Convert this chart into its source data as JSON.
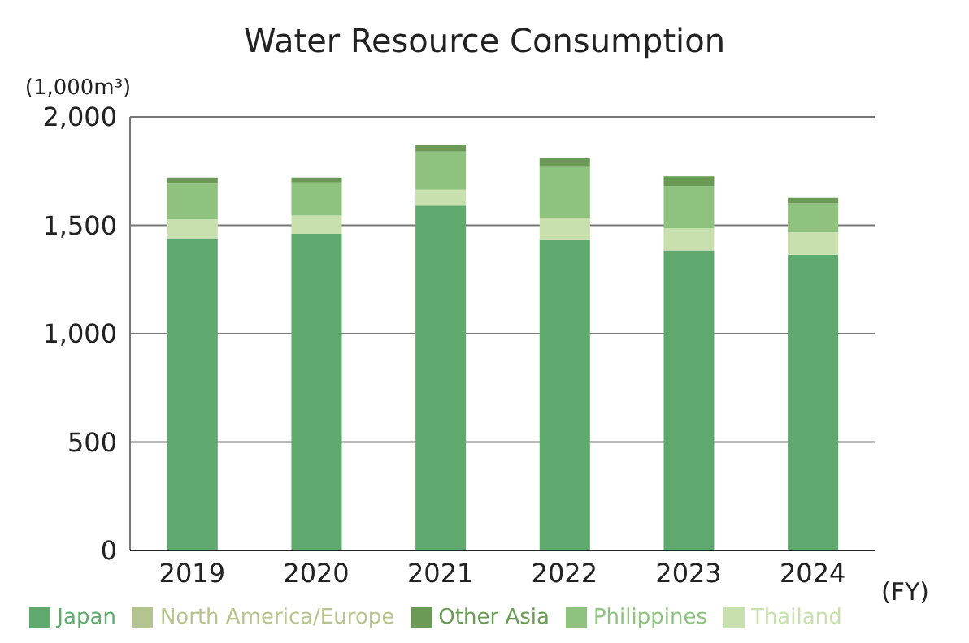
{
  "chart_data": {
    "type": "bar",
    "title": "Water Resource Consumption",
    "ylabel": "(1,000m³)",
    "xlabel": "(FY)",
    "categories": [
      "2019",
      "2020",
      "2021",
      "2022",
      "2023",
      "2024"
    ],
    "stacked": true,
    "series": [
      {
        "name": "Japan",
        "color": "#5fa86e",
        "values": [
          1440,
          1461,
          1591,
          1435,
          1384,
          1364
        ]
      },
      {
        "name": "Thailand",
        "color": "#c7e0ad",
        "values": [
          87,
          84,
          73,
          100,
          102,
          104
        ]
      },
      {
        "name": "Philippines",
        "color": "#8fc27f",
        "values": [
          165,
          153,
          176,
          234,
          196,
          133
        ]
      },
      {
        "name": "Other Asia",
        "color": "#6a9a55",
        "values": [
          28,
          22,
          33,
          41,
          44,
          25
        ]
      },
      {
        "name": "North America/Europe",
        "color": "#b5c48f",
        "values": [
          0,
          0,
          0,
          0,
          0,
          0
        ]
      }
    ],
    "ylim": [
      0,
      2000
    ],
    "yticks": [
      {
        "value": 0,
        "label": "0"
      },
      {
        "value": 500,
        "label": "500"
      },
      {
        "value": 1000,
        "label": "1,000"
      },
      {
        "value": 1500,
        "label": "1,500"
      },
      {
        "value": 2000,
        "label": "2,000"
      }
    ],
    "grid": "y",
    "legend": "bottom"
  }
}
